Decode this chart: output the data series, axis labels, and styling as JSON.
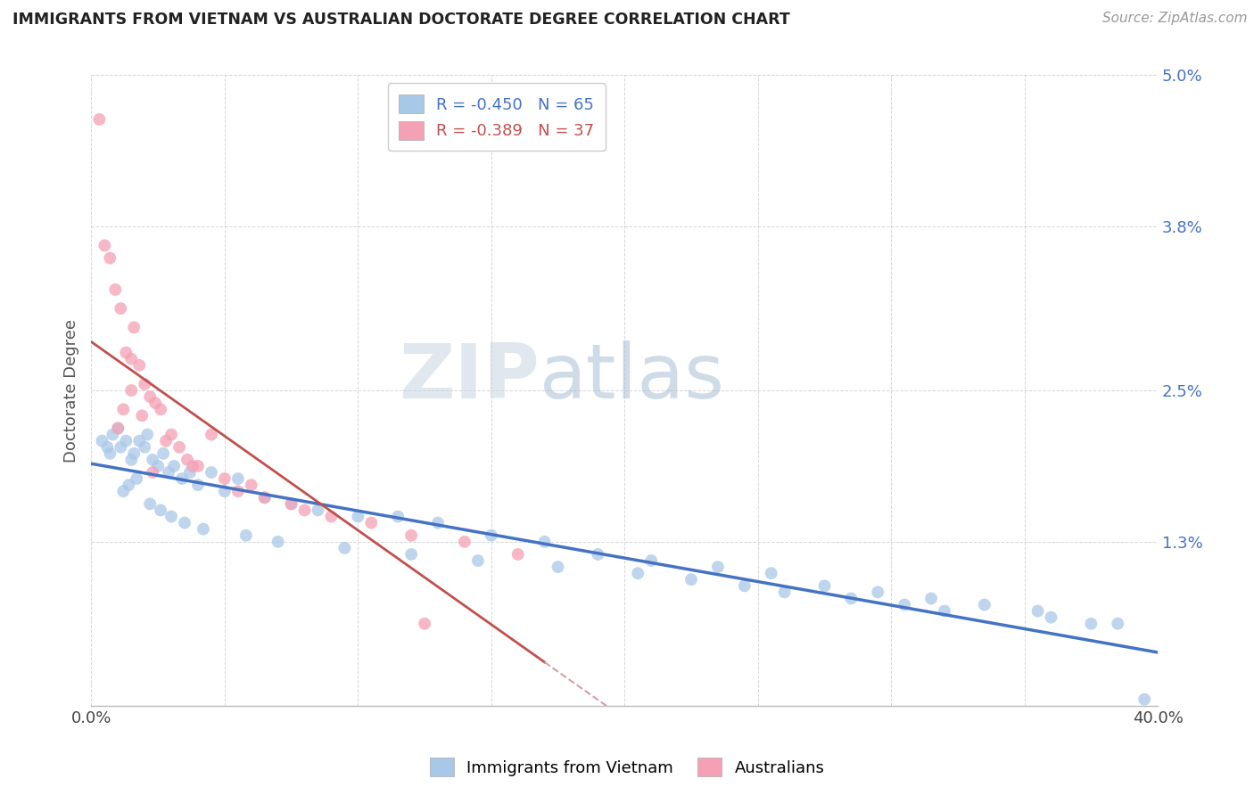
{
  "title": "IMMIGRANTS FROM VIETNAM VS AUSTRALIAN DOCTORATE DEGREE CORRELATION CHART",
  "source": "Source: ZipAtlas.com",
  "ylabel": "Doctorate Degree",
  "legend_label1": "Immigrants from Vietnam",
  "legend_label2": "Australians",
  "r1": -0.45,
  "n1": 65,
  "r2": -0.389,
  "n2": 37,
  "color1": "#A8C8E8",
  "color2": "#F4A0B5",
  "line_color1": "#4472C4",
  "line_color2": "#C0504D",
  "line_color2_dashed": "#D4A0A8",
  "watermark_zip_color": "#C5D5E5",
  "watermark_atlas_color": "#B0C8D8",
  "xlim": [
    0.0,
    40.0
  ],
  "ylim": [
    0.0,
    5.0
  ],
  "scatter1_x": [
    0.4,
    0.6,
    0.7,
    0.8,
    1.0,
    1.1,
    1.3,
    1.5,
    1.6,
    1.8,
    2.0,
    2.1,
    2.3,
    2.5,
    2.7,
    2.9,
    3.1,
    3.4,
    3.7,
    4.0,
    4.5,
    5.0,
    5.5,
    6.5,
    7.5,
    8.5,
    10.0,
    11.5,
    13.0,
    15.0,
    17.0,
    19.0,
    21.0,
    23.5,
    25.5,
    27.5,
    29.5,
    31.5,
    33.5,
    35.5,
    37.5,
    39.5,
    1.2,
    1.4,
    1.7,
    2.2,
    2.6,
    3.0,
    3.5,
    4.2,
    5.8,
    7.0,
    9.5,
    12.0,
    14.5,
    17.5,
    20.5,
    22.5,
    24.5,
    26.0,
    28.5,
    30.5,
    32.0,
    36.0,
    38.5
  ],
  "scatter1_y": [
    2.1,
    2.05,
    2.0,
    2.15,
    2.2,
    2.05,
    2.1,
    1.95,
    2.0,
    2.1,
    2.05,
    2.15,
    1.95,
    1.9,
    2.0,
    1.85,
    1.9,
    1.8,
    1.85,
    1.75,
    1.85,
    1.7,
    1.8,
    1.65,
    1.6,
    1.55,
    1.5,
    1.5,
    1.45,
    1.35,
    1.3,
    1.2,
    1.15,
    1.1,
    1.05,
    0.95,
    0.9,
    0.85,
    0.8,
    0.75,
    0.65,
    0.05,
    1.7,
    1.75,
    1.8,
    1.6,
    1.55,
    1.5,
    1.45,
    1.4,
    1.35,
    1.3,
    1.25,
    1.2,
    1.15,
    1.1,
    1.05,
    1.0,
    0.95,
    0.9,
    0.85,
    0.8,
    0.75,
    0.7,
    0.65
  ],
  "scatter2_x": [
    0.3,
    0.5,
    0.7,
    0.9,
    1.1,
    1.3,
    1.5,
    1.6,
    1.8,
    2.0,
    2.2,
    2.4,
    2.6,
    2.8,
    3.0,
    3.3,
    3.6,
    4.0,
    4.5,
    5.0,
    5.5,
    6.5,
    7.5,
    9.0,
    10.5,
    12.0,
    14.0,
    16.0,
    1.0,
    1.2,
    1.5,
    1.9,
    2.3,
    3.8,
    6.0,
    8.0,
    12.5
  ],
  "scatter2_y": [
    4.65,
    3.65,
    3.55,
    3.3,
    3.15,
    2.8,
    2.75,
    3.0,
    2.7,
    2.55,
    2.45,
    2.4,
    2.35,
    2.1,
    2.15,
    2.05,
    1.95,
    1.9,
    2.15,
    1.8,
    1.7,
    1.65,
    1.6,
    1.5,
    1.45,
    1.35,
    1.3,
    1.2,
    2.2,
    2.35,
    2.5,
    2.3,
    1.85,
    1.9,
    1.75,
    1.55,
    0.65
  ]
}
